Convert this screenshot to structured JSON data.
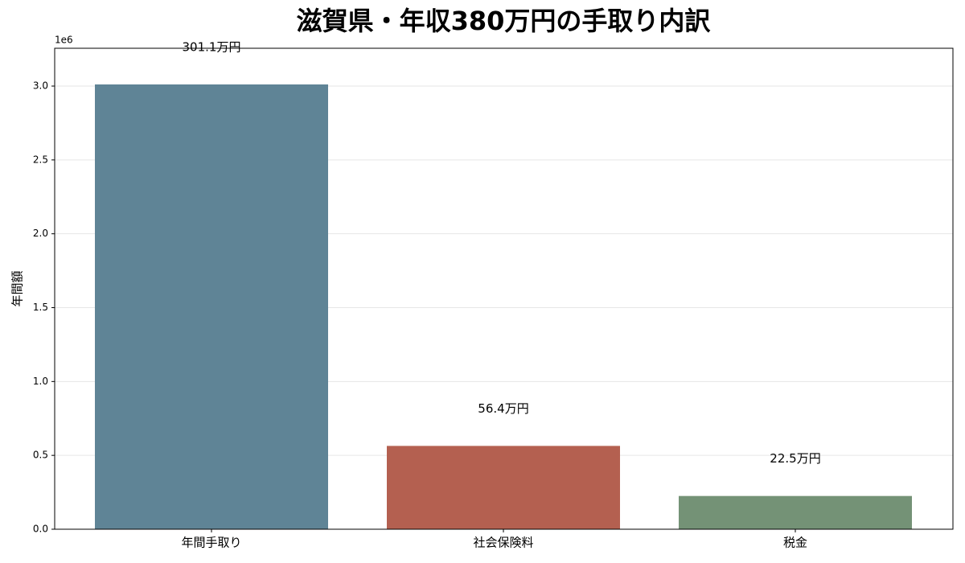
{
  "chart_data": {
    "type": "bar",
    "title": "滋賀県・年収380万円の手取り内訳",
    "ylabel": "年間額",
    "y_offset_label": "1e6",
    "categories": [
      "年間手取り",
      "社会保険料",
      "税金"
    ],
    "values": [
      3011000,
      564000,
      225000
    ],
    "value_labels": [
      "301.1万円",
      "56.4万円",
      "22.5万円"
    ],
    "colors": [
      "#5f8496",
      "#b46050",
      "#749276"
    ],
    "ylim": [
      0,
      3256000
    ],
    "yticks": [
      {
        "value": 0,
        "label": "0.0"
      },
      {
        "value": 500000,
        "label": "0.5"
      },
      {
        "value": 1000000,
        "label": "1.0"
      },
      {
        "value": 1500000,
        "label": "1.5"
      },
      {
        "value": 2000000,
        "label": "2.0"
      },
      {
        "value": 2500000,
        "label": "2.5"
      },
      {
        "value": 3000000,
        "label": "3.0"
      }
    ],
    "grid": true
  }
}
